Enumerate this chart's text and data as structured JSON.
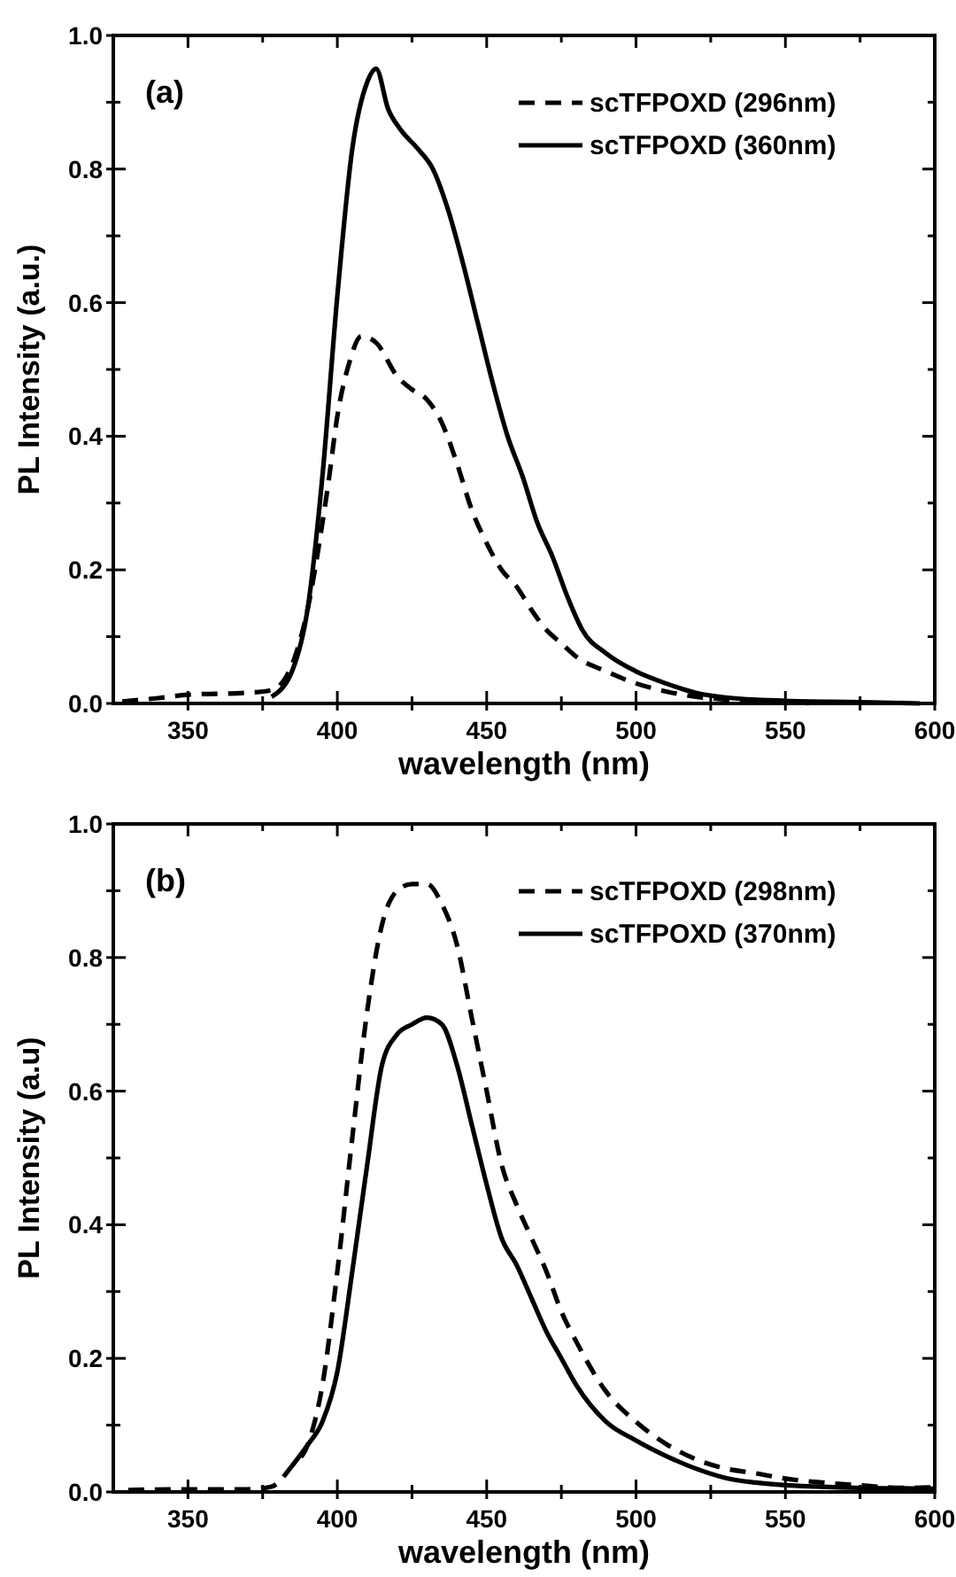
{
  "chart_data": [
    {
      "type": "line",
      "xlabel": "wavelength (nm)",
      "ylabel": "PL Intensity (a.u.)",
      "annotations": [
        "(a)"
      ],
      "xlim": [
        325,
        600
      ],
      "ylim": [
        0,
        1
      ],
      "xticks": [
        350,
        {
          "value": 375,
          "label": null
        },
        400,
        {
          "value": 425,
          "label": null
        },
        450,
        {
          "value": 475,
          "label": null
        },
        500,
        {
          "value": 525,
          "label": null
        },
        550,
        {
          "value": 575,
          "label": null
        },
        600
      ],
      "yticks": [
        {
          "value": 0,
          "label": "0.0"
        },
        {
          "value": 0.1,
          "label": null
        },
        {
          "value": 0.2,
          "label": "0.2"
        },
        {
          "value": 0.3,
          "label": null
        },
        {
          "value": 0.4,
          "label": "0.4"
        },
        {
          "value": 0.5,
          "label": null
        },
        {
          "value": 0.6,
          "label": "0.6"
        },
        {
          "value": 0.7,
          "label": null
        },
        {
          "value": 0.8,
          "label": "0.8"
        },
        {
          "value": 0.9,
          "label": null
        },
        {
          "value": 1,
          "label": "1.0"
        }
      ],
      "legend": "top right",
      "grid": false,
      "series": [
        {
          "name": "scTFPOXD (296nm)",
          "color": "#000000",
          "line_style": "dashed",
          "x": [
            328,
            340,
            350,
            370,
            378,
            385,
            390,
            395,
            397,
            400,
            404,
            408,
            413,
            420,
            425,
            430,
            435,
            440,
            445,
            450,
            455,
            460,
            465,
            470,
            475,
            480,
            490,
            500,
            510,
            520,
            530,
            550,
            560
          ],
          "values": [
            0.003,
            0.008,
            0.013,
            0.016,
            0.02,
            0.06,
            0.14,
            0.27,
            0.33,
            0.43,
            0.51,
            0.55,
            0.54,
            0.49,
            0.47,
            0.455,
            0.42,
            0.36,
            0.29,
            0.24,
            0.2,
            0.175,
            0.14,
            0.11,
            0.09,
            0.07,
            0.048,
            0.03,
            0.018,
            0.01,
            0.006,
            0.002,
            0
          ]
        },
        {
          "name": "scTFPOXD (360nm)",
          "color": "#000000",
          "line_style": "solid",
          "x": [
            378,
            385,
            390,
            395,
            400,
            405,
            410,
            413,
            417,
            421,
            427,
            432,
            437,
            442,
            447,
            452,
            457,
            462,
            467,
            472,
            477,
            482,
            490,
            500,
            510,
            520,
            530,
            550,
            575,
            595
          ],
          "values": [
            0.01,
            0.05,
            0.14,
            0.34,
            0.61,
            0.83,
            0.93,
            0.95,
            0.89,
            0.86,
            0.83,
            0.8,
            0.74,
            0.66,
            0.57,
            0.48,
            0.4,
            0.34,
            0.27,
            0.22,
            0.16,
            0.11,
            0.075,
            0.048,
            0.03,
            0.016,
            0.009,
            0.004,
            0.002,
            0
          ]
        }
      ]
    },
    {
      "type": "line",
      "xlabel": "wavelength (nm)",
      "ylabel": "PL Intensity (a.u)",
      "annotations": [
        "(b)"
      ],
      "xlim": [
        325,
        600
      ],
      "ylim": [
        0,
        1
      ],
      "xticks": [
        350,
        {
          "value": 375,
          "label": null
        },
        400,
        {
          "value": 425,
          "label": null
        },
        450,
        {
          "value": 475,
          "label": null
        },
        500,
        {
          "value": 525,
          "label": null
        },
        550,
        {
          "value": 575,
          "label": null
        },
        600
      ],
      "yticks": [
        {
          "value": 0,
          "label": "0.0"
        },
        {
          "value": 0.1,
          "label": null
        },
        {
          "value": 0.2,
          "label": "0.2"
        },
        {
          "value": 0.3,
          "label": null
        },
        {
          "value": 0.4,
          "label": "0.4"
        },
        {
          "value": 0.5,
          "label": null
        },
        {
          "value": 0.6,
          "label": "0.6"
        },
        {
          "value": 0.7,
          "label": null
        },
        {
          "value": 0.8,
          "label": "0.8"
        },
        {
          "value": 0.9,
          "label": null
        },
        {
          "value": 1,
          "label": "1.0"
        }
      ],
      "legend": "top right",
      "grid": false,
      "series": [
        {
          "name": "scTFPOXD (298nm)",
          "color": "#000000",
          "line_style": "dashed",
          "x": [
            330,
            350,
            370,
            378,
            385,
            390,
            395,
            400,
            405,
            410,
            415,
            420,
            425,
            430,
            435,
            440,
            445,
            450,
            455,
            460,
            465,
            470,
            475,
            480,
            490,
            500,
            510,
            520,
            530,
            540,
            550,
            560,
            575,
            590,
            600
          ],
          "values": [
            0.003,
            0.004,
            0.004,
            0.008,
            0.04,
            0.07,
            0.16,
            0.33,
            0.53,
            0.72,
            0.85,
            0.9,
            0.91,
            0.91,
            0.88,
            0.82,
            0.71,
            0.6,
            0.49,
            0.43,
            0.38,
            0.33,
            0.27,
            0.225,
            0.15,
            0.105,
            0.072,
            0.049,
            0.035,
            0.028,
            0.02,
            0.015,
            0.01,
            0.006,
            0.007
          ]
        },
        {
          "name": "scTFPOXD (370nm)",
          "color": "#000000",
          "line_style": "solid",
          "x": [
            385,
            390,
            395,
            400,
            405,
            410,
            415,
            420,
            425,
            430,
            435,
            440,
            445,
            450,
            455,
            460,
            465,
            470,
            475,
            480,
            490,
            500,
            510,
            520,
            530,
            540,
            550,
            560,
            575,
            600
          ],
          "values": [
            0.04,
            0.07,
            0.105,
            0.18,
            0.33,
            0.49,
            0.64,
            0.685,
            0.7,
            0.71,
            0.7,
            0.64,
            0.55,
            0.46,
            0.38,
            0.34,
            0.29,
            0.24,
            0.2,
            0.16,
            0.105,
            0.077,
            0.054,
            0.035,
            0.021,
            0.014,
            0.01,
            0.008,
            0.006,
            0.005
          ]
        }
      ]
    }
  ]
}
